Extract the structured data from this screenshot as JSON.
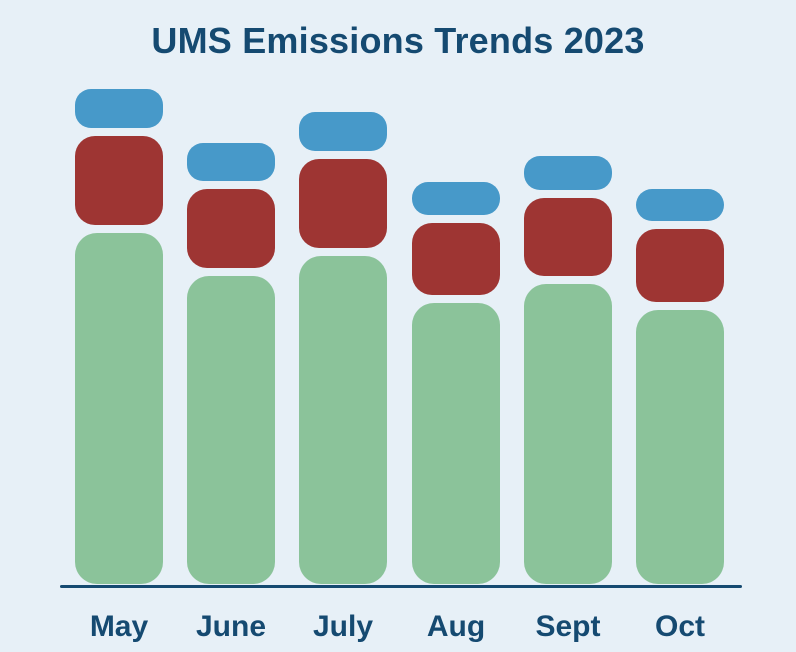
{
  "title": "UMS Emissions Trends 2023",
  "colors": {
    "background": "#e7f0f7",
    "title_text": "#154a71",
    "axis_line": "#154a71",
    "label_text": "#154a71",
    "series_green": "#8bc39a",
    "series_red": "#9e3533",
    "series_blue": "#4799c9"
  },
  "chart_data": {
    "type": "bar",
    "stacked": true,
    "title": "UMS Emissions Trends 2023",
    "categories": [
      "May",
      "June",
      "July",
      "Aug",
      "Sept",
      "Oct"
    ],
    "series": [
      {
        "name": "green-bottom-segment",
        "color": "#8bc39a",
        "values": [
          351,
          308,
          328,
          281,
          300,
          274
        ]
      },
      {
        "name": "red-middle-segment",
        "color": "#9e3533",
        "values": [
          89,
          79,
          89,
          72,
          78,
          73
        ]
      },
      {
        "name": "blue-top-segment",
        "color": "#4799c9",
        "values": [
          39,
          38,
          39,
          33,
          34,
          32
        ]
      }
    ],
    "xlabel": "",
    "ylabel": "",
    "y_axis_visible": false,
    "x_axis_line": true,
    "grid": false,
    "legend": "none",
    "value_unit": "relative height units (no numeric axis shown)"
  }
}
